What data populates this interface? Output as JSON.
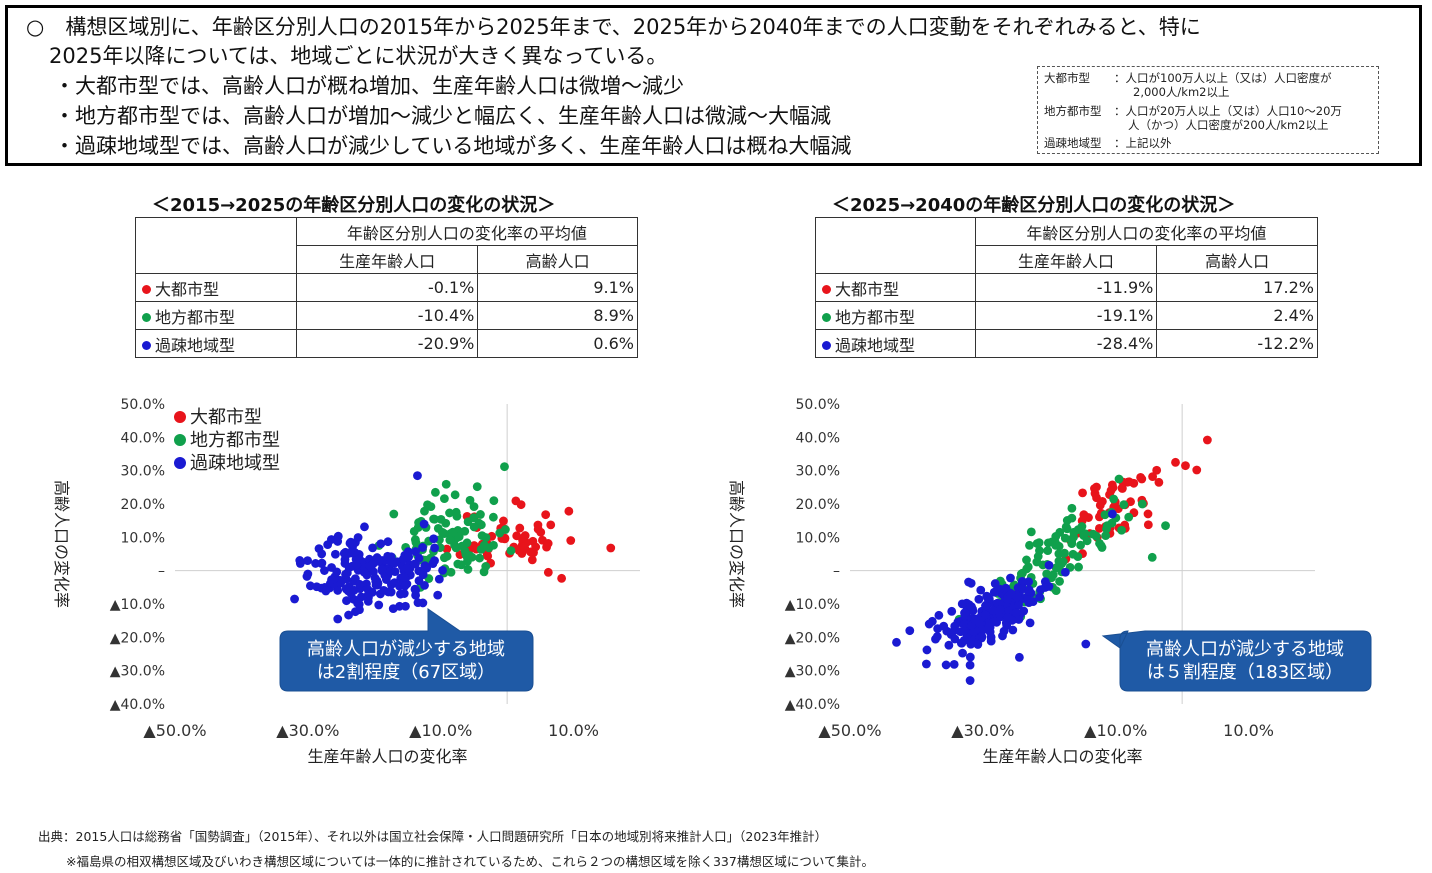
{
  "summary": {
    "line1": "○　構想区域別に、年齢区分別人口の2015年から2025年まで、2025年から2040年までの人口変動をそれぞれみると、特に",
    "line2": "2025年以降については、地域ごとに状況が大きく異なっている。",
    "bullets": [
      "・大都市型では、高齢人口が概ね増加、生産年齢人口は微増～減少",
      "・地方都市型では、高齢人口が増加～減少と幅広く、生産年齢人口は微減～大幅減",
      "・過疎地域型では、高齢人口が減少している地域が多く、生産年齢人口は概ね大幅減"
    ],
    "definitions": {
      "r1_label": "大都市型",
      "r1_text": "：人口が100万人以上（又は）人口密度が",
      "r1_cont": "2,000人/km2以上",
      "r2_label": "地方都市型",
      "r2_text": "：人口が20万人以上（又は）人口10～20万",
      "r2_cont": "人（かつ）人口密度が200人/km2以上",
      "r3_label": "過疎地域型",
      "r3_text": "：上記以外"
    }
  },
  "colors": {
    "metro": "#e8141b",
    "regional": "#10a04c",
    "rural": "#1a1ad2",
    "callout": "#1f5aa6"
  },
  "left": {
    "title": "＜2015→2025の年齢区分別人口の変化の状況＞",
    "table": {
      "header": "年齢区分別人口の変化率の平均値",
      "col1": "生産年齢人口",
      "col2": "高齢人口",
      "rows": [
        {
          "name": "大都市型",
          "prod": "-0.1%",
          "elder": "9.1%"
        },
        {
          "name": "地方都市型",
          "prod": "-10.4%",
          "elder": "8.9%"
        },
        {
          "name": "過疎地域型",
          "prod": "-20.9%",
          "elder": "0.6%"
        }
      ]
    },
    "callout": {
      "line1": "高齢人口が減少する地域",
      "line2": "は2割程度（67区域）"
    }
  },
  "right": {
    "title": "＜2025→2040の年齢区分別人口の変化の状況＞",
    "table": {
      "header": "年齢区分別人口の変化率の平均値",
      "col1": "生産年齢人口",
      "col2": "高齢人口",
      "rows": [
        {
          "name": "大都市型",
          "prod": "-11.9%",
          "elder": "17.2%"
        },
        {
          "name": "地方都市型",
          "prod": "-19.1%",
          "elder": "2.4%"
        },
        {
          "name": "過疎地域型",
          "prod": "-28.4%",
          "elder": "-12.2%"
        }
      ]
    },
    "callout": {
      "line1": "高齢人口が減少する地域",
      "line2": "は５割程度（183区域）"
    }
  },
  "footer": {
    "source": "出典：2015人口は総務省「国勢調査」（2015年）、それ以外は国立社会保障・人口問題研究所「日本の地域別将来推計人口」（2023年推計）",
    "note": "※福島県の相双構想区域及びいわき構想区域については一体的に推計されているため、これら２つの構想区域を除く337構想区域について集計。"
  },
  "chart_data": [
    {
      "type": "scatter",
      "title": "2015→2025",
      "xlabel": "生産年齢人口の変化率",
      "ylabel": "高齢人口の変化率",
      "xlim": [
        -50,
        20
      ],
      "ylim": [
        -40,
        50
      ],
      "xtick_values": [
        -50,
        -30,
        -10,
        10
      ],
      "xtick_labels": [
        "▲50.0%",
        "▲30.0%",
        "▲10.0%",
        "10.0%"
      ],
      "ytick_values": [
        50,
        40,
        30,
        20,
        10,
        0,
        -10,
        -20,
        -30,
        -40
      ],
      "ytick_labels": [
        "50.0%",
        "40.0%",
        "30.0%",
        "20.0%",
        "10.0%",
        "–",
        "▲10.0%",
        "▲20.0%",
        "▲30.0%",
        "▲40.0%"
      ],
      "legend": [
        "大都市型",
        "地方都市型",
        "過疎地域型"
      ],
      "legend_position": "top-left",
      "regions_described": "337 planning areas; individual points estimated as clusters",
      "series": [
        {
          "name": "大都市型",
          "color_key": "metro",
          "count": 52,
          "generator": {
            "mean_x": 0.5,
            "sd_x": 3.8,
            "mean_y": 9.5,
            "sd_y": 4.2,
            "seed": 11
          },
          "extra_points": [
            [
              15.6,
              6.8
            ],
            [
              8.2,
              -2.3
            ],
            [
              6.2,
              -0.5
            ],
            [
              2.1,
              19.8
            ],
            [
              5.8,
              16.8
            ]
          ]
        },
        {
          "name": "地方都市型",
          "color_key": "regional",
          "count": 95,
          "generator": {
            "mean_x": -9.0,
            "sd_x": 3.8,
            "mean_y": 9.0,
            "sd_y": 5.5,
            "seed": 23
          },
          "extra_points": [
            [
              -0.4,
              31.2
            ],
            [
              -4.5,
              25.2
            ],
            [
              -10.8,
              23.5
            ],
            [
              -2.0,
              21.0
            ]
          ]
        },
        {
          "name": "過疎地域型",
          "color_key": "rural",
          "count": 190,
          "generator": {
            "mean_x": -20.5,
            "sd_x": 4.5,
            "mean_y": -0.2,
            "sd_y": 5.5,
            "seed": 37
          },
          "extra_points": [
            [
              -13.5,
              28.5
            ],
            [
              -32.0,
              -8.5
            ],
            [
              -30.0,
              -1.0
            ],
            [
              -25.5,
              -14.5
            ],
            [
              -12.5,
              14.0
            ]
          ]
        }
      ]
    },
    {
      "type": "scatter",
      "title": "2025→2040",
      "xlabel": "生産年齢人口の変化率",
      "ylabel": "高齢人口の変化率",
      "xlim": [
        -50,
        20
      ],
      "ylim": [
        -40,
        50
      ],
      "xtick_values": [
        -50,
        -30,
        -10,
        10
      ],
      "xtick_labels": [
        "▲50.0%",
        "▲30.0%",
        "▲10.0%",
        "10.0%"
      ],
      "ytick_values": [
        50,
        40,
        30,
        20,
        10,
        0,
        -10,
        -20,
        -30,
        -40
      ],
      "ytick_labels": [
        "50.0%",
        "40.0%",
        "30.0%",
        "20.0%",
        "10.0%",
        "–",
        "▲10.0%",
        "▲20.0%",
        "▲30.0%",
        "▲40.0%"
      ],
      "legend_position": "none",
      "series": [
        {
          "name": "大都市型",
          "color_key": "metro",
          "count": 52,
          "generator": {
            "mean_x": -11.0,
            "sd_x": 3.8,
            "mean_y": 18.0,
            "sd_y": 5.5,
            "seed": 51,
            "trend": 1.2
          },
          "extra_points": [
            [
              3.8,
              39.2
            ],
            [
              -1.0,
              32.5
            ],
            [
              0.5,
              31.5
            ],
            [
              2.2,
              30.2
            ],
            [
              -3.5,
              26.5
            ],
            [
              -17.5,
              3.5
            ]
          ]
        },
        {
          "name": "地方都市型",
          "color_key": "regional",
          "count": 95,
          "generator": {
            "mean_x": -19.0,
            "sd_x": 5.0,
            "mean_y": 3.0,
            "sd_y": 5.0,
            "seed": 67,
            "trend": 1.25
          },
          "extra_points": [
            [
              -6.0,
              20.0
            ],
            [
              -9.5,
              27.5
            ],
            [
              -4.5,
              4.0
            ],
            [
              -2.5,
              13.5
            ],
            [
              -19.5,
              -5.0
            ]
          ]
        },
        {
          "name": "過疎地域型",
          "color_key": "rural",
          "count": 190,
          "generator": {
            "mean_x": -28.5,
            "sd_x": 4.0,
            "mean_y": -13.0,
            "sd_y": 4.5,
            "seed": 89,
            "trend": 1.1
          },
          "extra_points": [
            [
              -43.0,
              -21.5
            ],
            [
              -41.0,
              -18.0
            ],
            [
              -38.5,
              -28.0
            ],
            [
              -10.5,
              17.0
            ],
            [
              -14.5,
              -22.0
            ],
            [
              -24.5,
              -26.0
            ]
          ]
        }
      ]
    }
  ]
}
